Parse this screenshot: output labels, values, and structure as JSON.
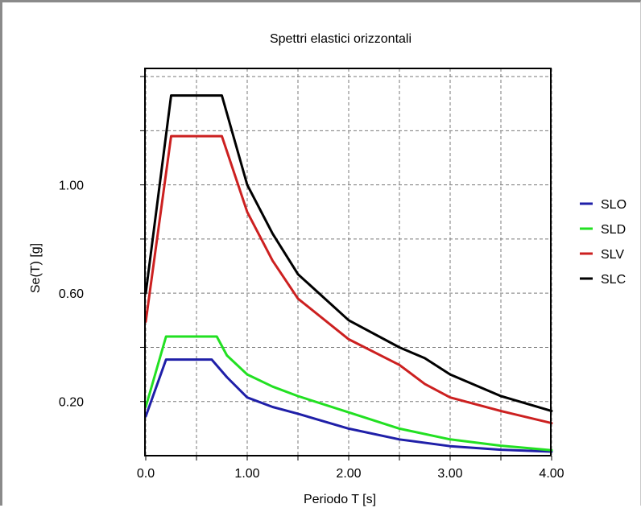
{
  "chart_data": {
    "type": "line",
    "title": "Spettri elastici orizzontali",
    "xlabel": "Periodo T [s]",
    "ylabel": "Se(T) [g]",
    "xlim": [
      0,
      4
    ],
    "ylim": [
      0,
      1.43
    ],
    "xticks": [
      0,
      1,
      2,
      3,
      4
    ],
    "xtick_labels": [
      "0.0",
      "1.00",
      "2.00",
      "3.00",
      "4.00"
    ],
    "yticks": [
      0.2,
      0.6,
      1.0
    ],
    "ytick_labels": [
      "0.20",
      "0.60",
      "1.00"
    ],
    "x_gridlines": [
      0,
      0.5,
      1,
      1.5,
      2,
      2.5,
      3,
      3.5,
      4
    ],
    "y_gridlines": [
      0.2,
      0.4,
      0.6,
      0.8,
      1.0,
      1.2,
      1.4
    ],
    "grid": true,
    "legend_position": "right",
    "series": [
      {
        "name": "SLO",
        "color": "#1f1fa8",
        "x": [
          0,
          0.2,
          0.65,
          0.8,
          1.0,
          1.25,
          1.5,
          2.0,
          2.5,
          3.0,
          3.5,
          4.0
        ],
        "y": [
          0.145,
          0.355,
          0.355,
          0.29,
          0.215,
          0.18,
          0.155,
          0.1,
          0.06,
          0.035,
          0.022,
          0.015
        ]
      },
      {
        "name": "SLD",
        "color": "#22e022",
        "x": [
          0,
          0.2,
          0.7,
          0.8,
          1.0,
          1.25,
          1.5,
          2.0,
          2.5,
          3.0,
          3.5,
          4.0
        ],
        "y": [
          0.18,
          0.44,
          0.44,
          0.37,
          0.3,
          0.255,
          0.22,
          0.16,
          0.1,
          0.06,
          0.037,
          0.02
        ]
      },
      {
        "name": "SLV",
        "color": "#cc2020",
        "x": [
          0,
          0.25,
          0.75,
          1.0,
          1.25,
          1.5,
          2.0,
          2.5,
          2.75,
          3.0,
          3.5,
          4.0
        ],
        "y": [
          0.495,
          1.18,
          1.18,
          0.9,
          0.72,
          0.58,
          0.43,
          0.335,
          0.265,
          0.215,
          0.165,
          0.12
        ]
      },
      {
        "name": "SLC",
        "color": "#000000",
        "x": [
          0,
          0.25,
          0.75,
          1.0,
          1.25,
          1.5,
          2.0,
          2.5,
          2.75,
          3.0,
          3.5,
          4.0
        ],
        "y": [
          0.6,
          1.33,
          1.33,
          1.0,
          0.82,
          0.67,
          0.5,
          0.4,
          0.36,
          0.3,
          0.22,
          0.165
        ]
      }
    ]
  }
}
